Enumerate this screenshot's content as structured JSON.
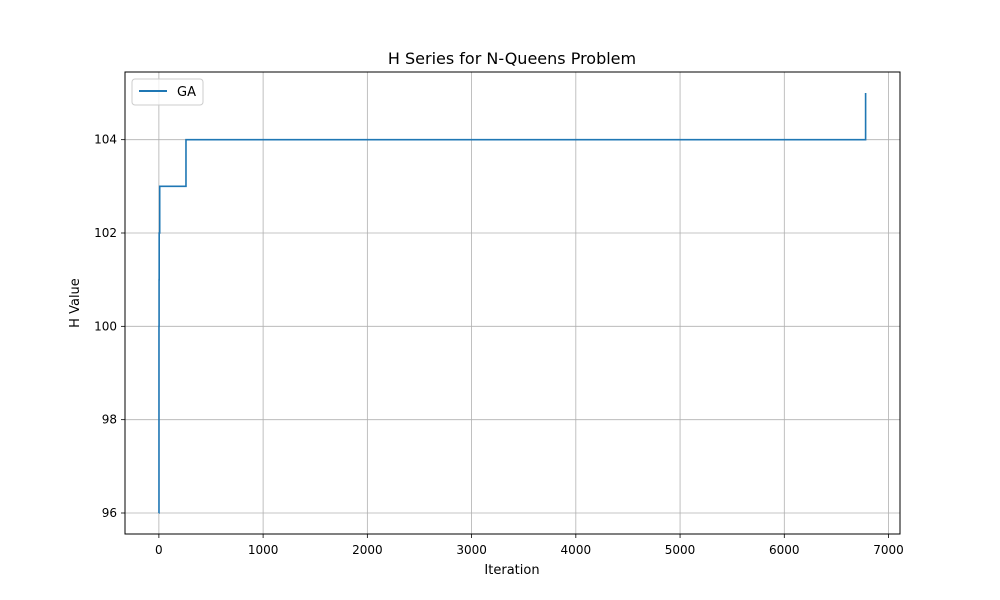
{
  "chart_data": {
    "type": "line",
    "title": "H Series for N-Queens Problem",
    "xlabel": "Iteration",
    "ylabel": "H Value",
    "xlim": [
      -325,
      7110
    ],
    "ylim": [
      95.55,
      105.45
    ],
    "xticks": [
      0,
      1000,
      2000,
      3000,
      4000,
      5000,
      6000,
      7000
    ],
    "yticks": [
      96,
      98,
      100,
      102,
      104
    ],
    "grid": true,
    "legend_position": "upper-left",
    "series": [
      {
        "name": "GA",
        "color": "#1f77b4",
        "step": true,
        "x": [
          0,
          1,
          2,
          3,
          5,
          8,
          12,
          260,
          6780,
          6780
        ],
        "y": [
          96,
          100,
          101,
          102,
          102,
          103,
          103,
          104,
          104,
          105
        ]
      }
    ]
  }
}
